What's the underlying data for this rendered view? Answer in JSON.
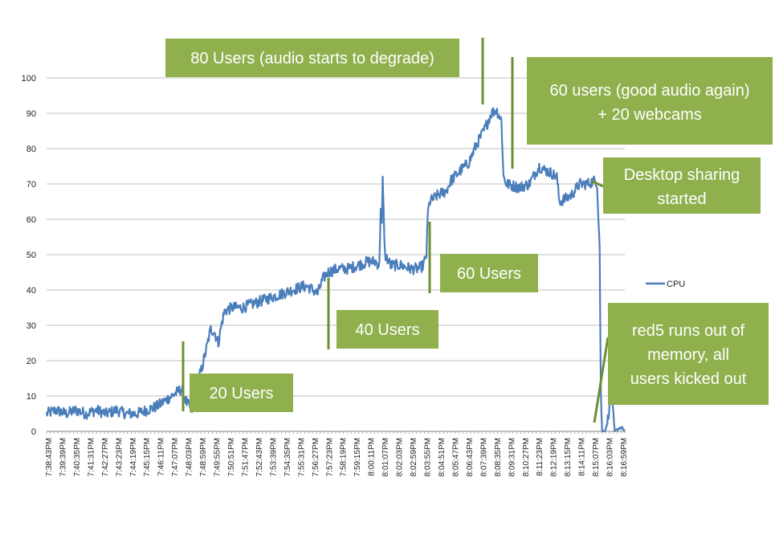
{
  "chart_data": {
    "type": "line",
    "ylim": [
      0,
      100
    ],
    "yticks": [
      0,
      10,
      20,
      30,
      40,
      50,
      60,
      70,
      80,
      90,
      100
    ],
    "grid": true,
    "legend": {
      "placement": "right",
      "entries": [
        "CPU"
      ]
    },
    "x_range_seconds": [
      27523,
      29820
    ],
    "categories": [
      "7:38:43PM",
      "7:39:39PM",
      "7:40:35PM",
      "7:41:31PM",
      "7:42:27PM",
      "7:43:23PM",
      "7:44:19PM",
      "7:45:15PM",
      "7:46:11PM",
      "7:47:07PM",
      "7:48:03PM",
      "7:48:59PM",
      "7:49:55PM",
      "7:50:51PM",
      "7:51:47PM",
      "7:52:43PM",
      "7:53:39PM",
      "7:54:35PM",
      "7:55:31PM",
      "7:56:27PM",
      "7:57:23PM",
      "7:58:19PM",
      "7:59:15PM",
      "8:00:11PM",
      "8:01:07PM",
      "8:02:03PM",
      "8:02:59PM",
      "8:03:55PM",
      "8:04:51PM",
      "8:05:47PM",
      "8:06:43PM",
      "8:07:39PM",
      "8:08:35PM",
      "8:09:31PM",
      "8:10:27PM",
      "8:11:23PM",
      "8:12:19PM",
      "8:13:15PM",
      "8:14:11PM",
      "8:15:07PM",
      "8:16:03PM",
      "8:16:59PM"
    ],
    "series": [
      {
        "name": "CPU",
        "color": "#4a7ebb",
        "points": [
          [
            27523,
            5
          ],
          [
            27560,
            6
          ],
          [
            27600,
            5
          ],
          [
            27640,
            6
          ],
          [
            27680,
            5
          ],
          [
            27720,
            6
          ],
          [
            27760,
            5
          ],
          [
            27800,
            6
          ],
          [
            27840,
            5
          ],
          [
            27880,
            5
          ],
          [
            27920,
            6
          ],
          [
            27960,
            7
          ],
          [
            28000,
            9
          ],
          [
            28020,
            10
          ],
          [
            28040,
            11
          ],
          [
            28060,
            12
          ],
          [
            28080,
            8
          ],
          [
            28100,
            6
          ],
          [
            28120,
            13
          ],
          [
            28140,
            18
          ],
          [
            28160,
            24
          ],
          [
            28175,
            29
          ],
          [
            28190,
            28
          ],
          [
            28205,
            25
          ],
          [
            28220,
            31
          ],
          [
            28230,
            34
          ],
          [
            28260,
            35
          ],
          [
            28300,
            35
          ],
          [
            28340,
            36
          ],
          [
            28380,
            37
          ],
          [
            28420,
            38
          ],
          [
            28460,
            39
          ],
          [
            28500,
            40
          ],
          [
            28540,
            41
          ],
          [
            28560,
            41
          ],
          [
            28600,
            39
          ],
          [
            28620,
            43
          ],
          [
            28640,
            45
          ],
          [
            28680,
            46
          ],
          [
            28720,
            46
          ],
          [
            28760,
            47
          ],
          [
            28800,
            48
          ],
          [
            28830,
            48
          ],
          [
            28845,
            47
          ],
          [
            28850,
            64
          ],
          [
            28855,
            58
          ],
          [
            28858,
            71
          ],
          [
            28862,
            62
          ],
          [
            28867,
            50
          ],
          [
            28890,
            47
          ],
          [
            28930,
            47
          ],
          [
            28970,
            46
          ],
          [
            29000,
            46
          ],
          [
            29020,
            47
          ],
          [
            29032,
            50
          ],
          [
            29038,
            62
          ],
          [
            29045,
            65
          ],
          [
            29080,
            67
          ],
          [
            29110,
            68
          ],
          [
            29130,
            71
          ],
          [
            29170,
            74
          ],
          [
            29200,
            76
          ],
          [
            29230,
            81
          ],
          [
            29260,
            85
          ],
          [
            29290,
            90
          ],
          [
            29310,
            91
          ],
          [
            29330,
            88
          ],
          [
            29338,
            72
          ],
          [
            29350,
            70
          ],
          [
            29400,
            69
          ],
          [
            29440,
            70
          ],
          [
            29480,
            75
          ],
          [
            29500,
            74
          ],
          [
            29530,
            73
          ],
          [
            29550,
            72
          ],
          [
            29560,
            65
          ],
          [
            29590,
            66
          ],
          [
            29610,
            67
          ],
          [
            29640,
            70
          ],
          [
            29670,
            70
          ],
          [
            29705,
            71
          ],
          [
            29710,
            70
          ],
          [
            29720,
            52
          ],
          [
            29725,
            10
          ],
          [
            29730,
            0
          ],
          [
            29740,
            0
          ],
          [
            29750,
            2
          ],
          [
            29760,
            8
          ],
          [
            29765,
            20
          ],
          [
            29772,
            6
          ],
          [
            29780,
            0
          ],
          [
            29800,
            1
          ],
          [
            29810,
            1
          ],
          [
            29820,
            0
          ]
        ]
      }
    ],
    "annotations": [
      {
        "lines": [
          "80 Users (audio starts to degrade)"
        ]
      },
      {
        "lines": [
          "60 users (good audio again)",
          "+ 20 webcams"
        ]
      },
      {
        "lines": [
          "Desktop sharing",
          "started"
        ]
      },
      {
        "lines": [
          "60 Users"
        ]
      },
      {
        "lines": [
          "40 Users"
        ]
      },
      {
        "lines": [
          "20 Users"
        ]
      },
      {
        "lines": [
          "red5 runs out of",
          "memory, all",
          "users kicked out"
        ]
      }
    ]
  }
}
